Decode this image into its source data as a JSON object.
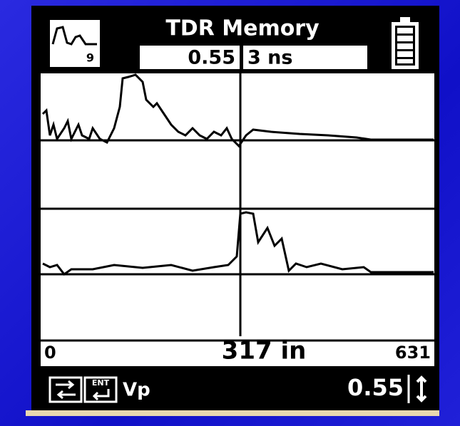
{
  "header": {
    "title": "TDR Memory",
    "icon_label": "9",
    "vp": "0.55",
    "range": "3 ns"
  },
  "scale": {
    "start": "0",
    "cursor": "317 in",
    "end": "631"
  },
  "footer": {
    "key_label": "ENT",
    "param": "Vp",
    "value": "0.55"
  }
}
